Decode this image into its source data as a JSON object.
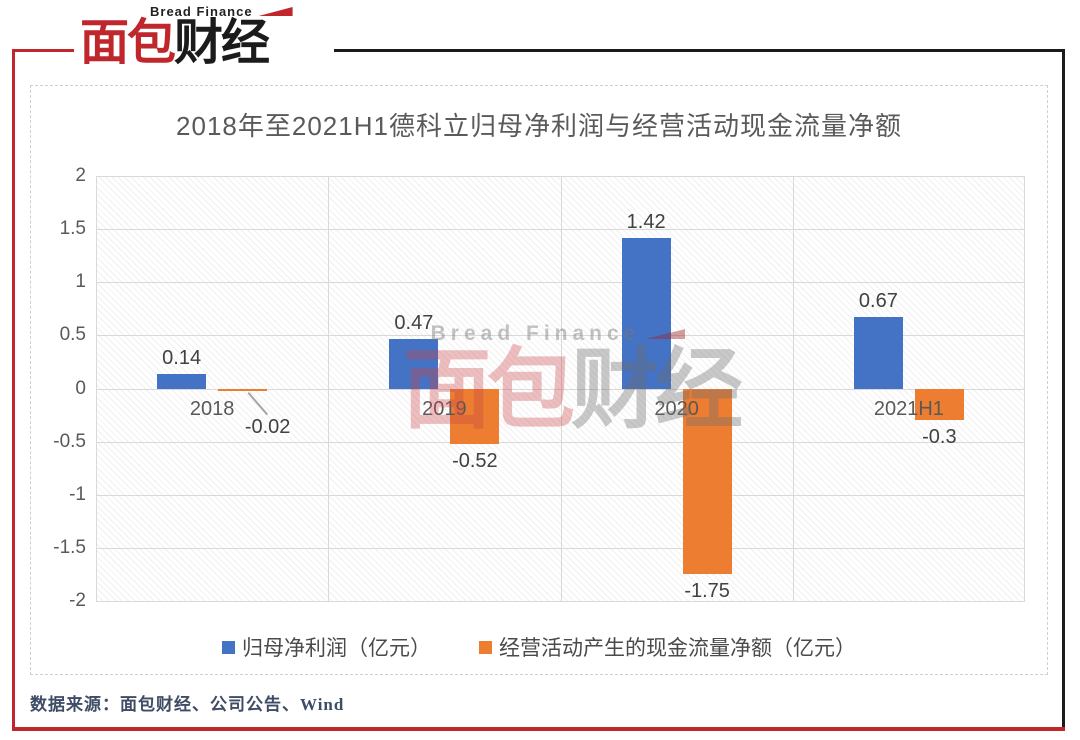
{
  "brand": {
    "logo_top": "Bread Finance",
    "logo_red": "面包",
    "logo_black": "财经",
    "accent_red": "#C0272D"
  },
  "watermark": {
    "top": "Bread Finance",
    "red": "面包",
    "gray": "财经"
  },
  "chart_data": {
    "type": "bar",
    "title": "2018年至2021H1德科立归母净利润与经营活动现金流量净额",
    "categories": [
      "2018",
      "2019",
      "2020",
      "2021H1"
    ],
    "series": [
      {
        "name": "归母净利润（亿元）",
        "color": "#4472C4",
        "values": [
          0.14,
          0.47,
          1.42,
          0.67
        ],
        "labels": [
          "0.14",
          "0.47",
          "1.42",
          "0.67"
        ]
      },
      {
        "name": "经营活动产生的现金流量净额（亿元）",
        "color": "#ED7D31",
        "values": [
          -0.02,
          -0.52,
          -1.75,
          -0.3
        ],
        "labels": [
          "-0.02",
          "-0.52",
          "-1.75",
          "-0.3"
        ]
      }
    ],
    "ylim": [
      -2,
      2
    ],
    "ytick_step": 0.5,
    "yticks": [
      "2",
      "1.5",
      "1",
      "0.5",
      "0",
      "-0.5",
      "-1",
      "-1.5",
      "-2"
    ],
    "grid": true,
    "legend_position": "bottom",
    "gridline_color": "#d9d9d9"
  },
  "footer": {
    "source": "数据来源：面包财经、公司公告、Wind"
  }
}
